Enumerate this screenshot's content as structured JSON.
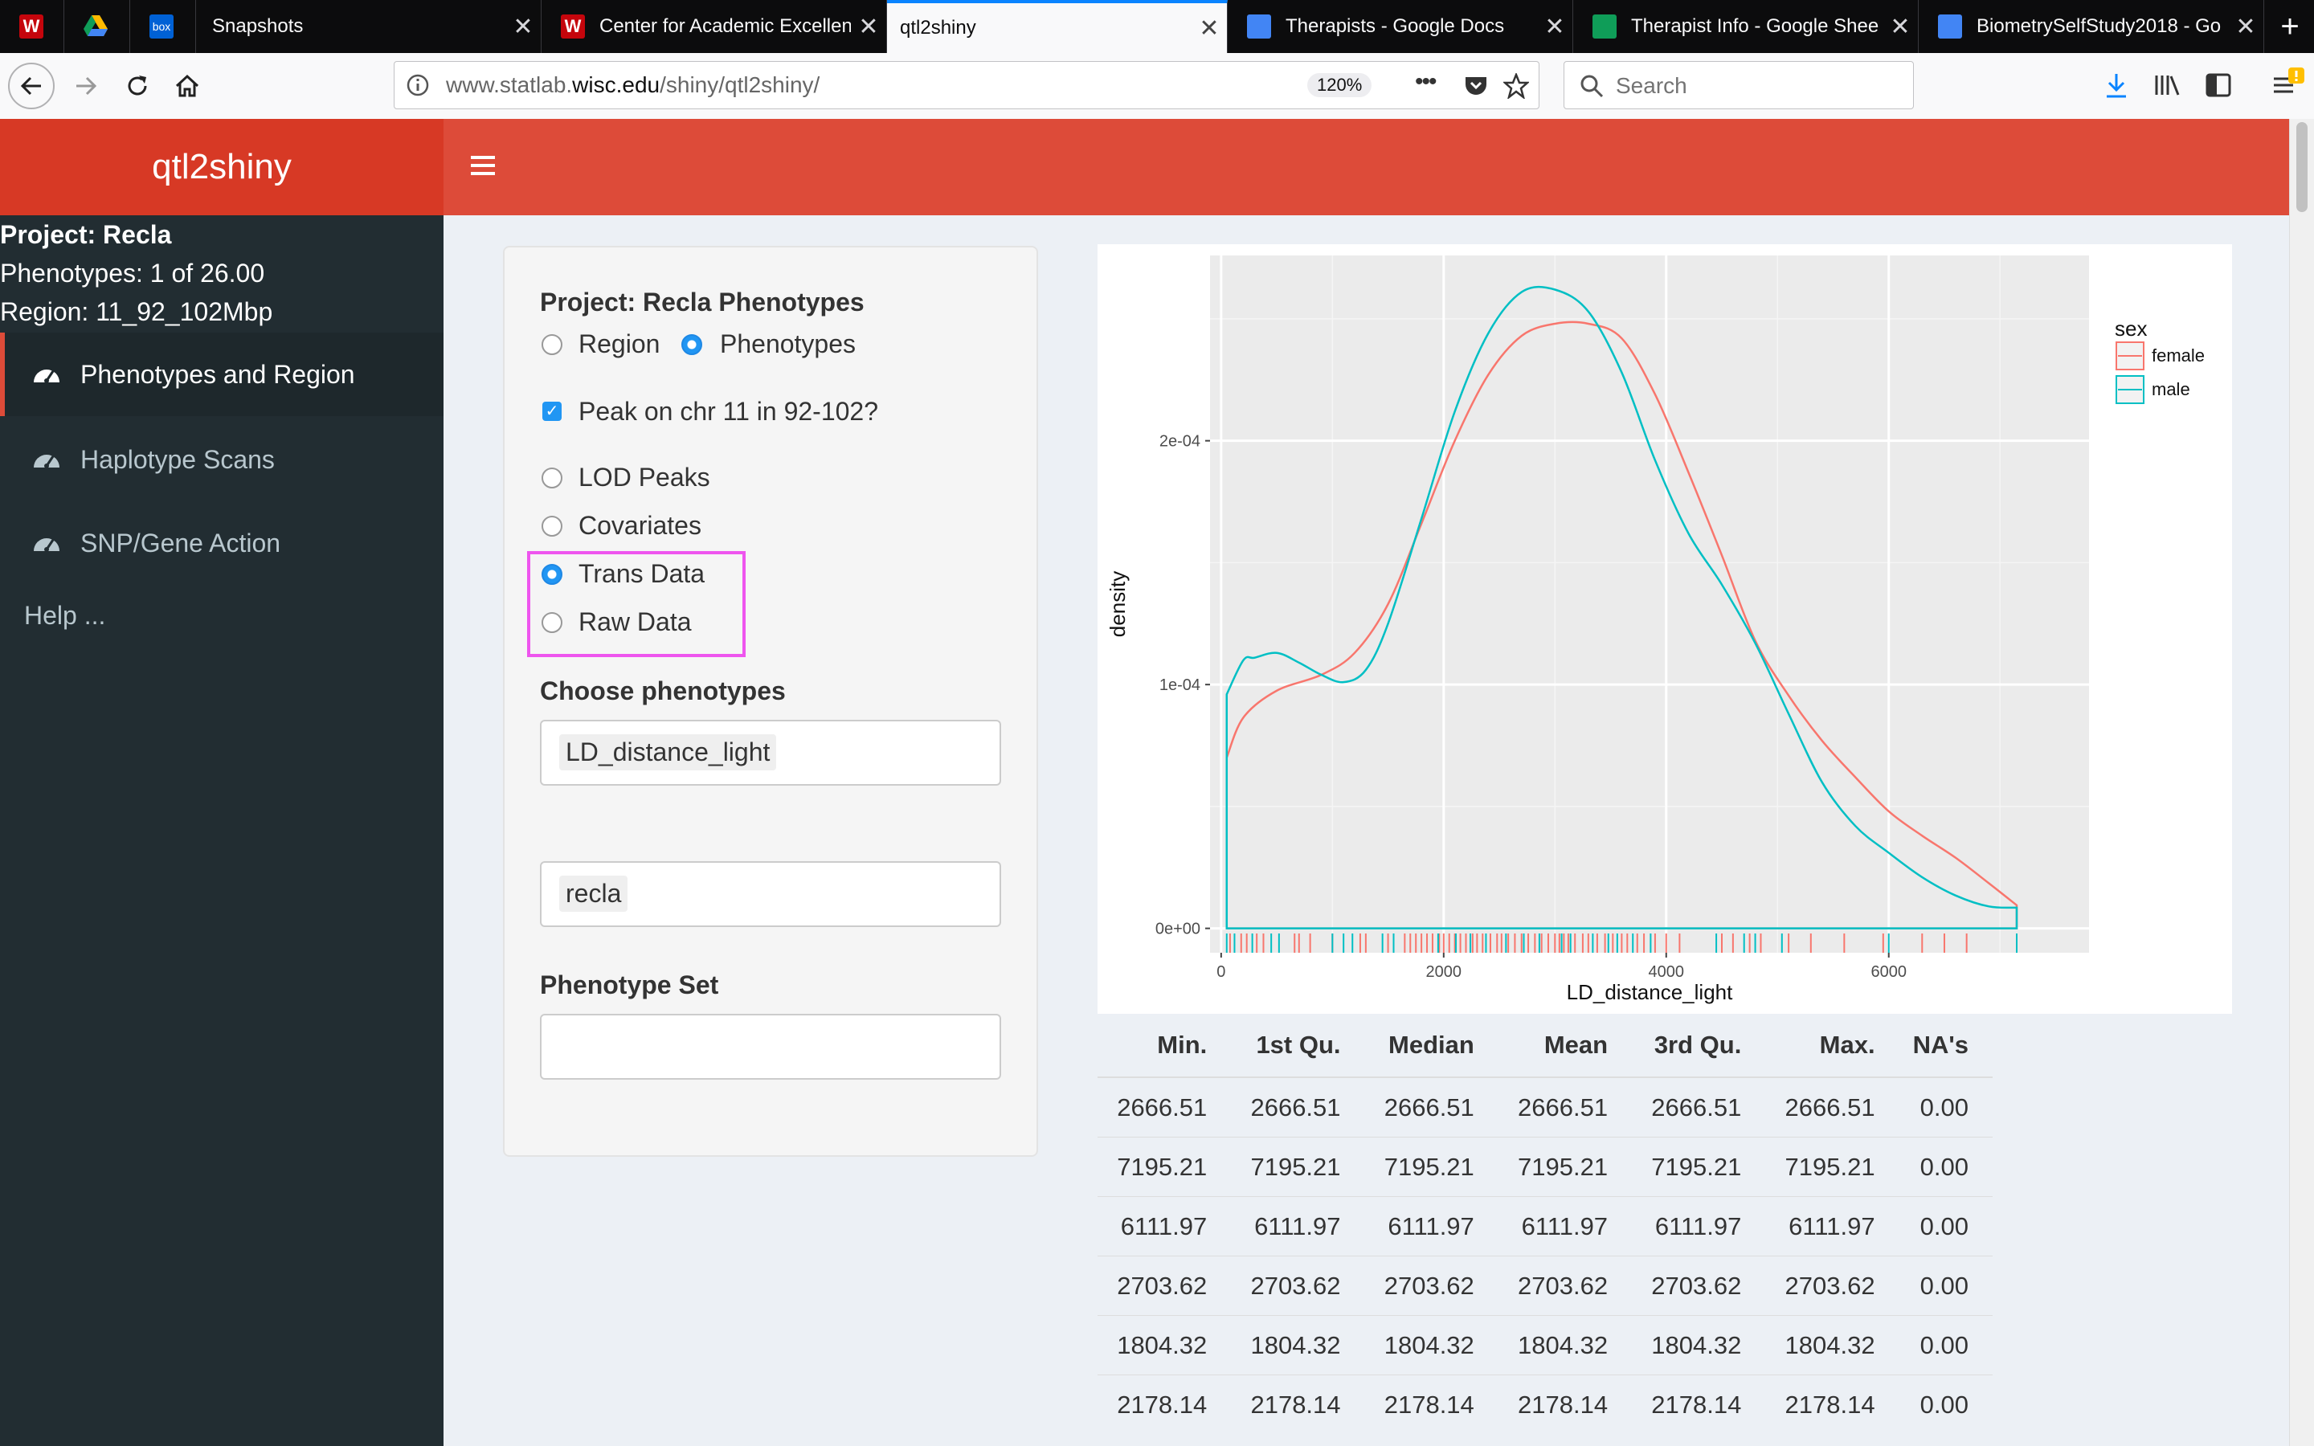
{
  "browser": {
    "tabs": [
      {
        "title": "",
        "icon": "wisc-w-icon"
      },
      {
        "title": "",
        "icon": "google-drive-icon"
      },
      {
        "title": "",
        "icon": "box-icon"
      },
      {
        "title": "Snapshots",
        "icon": "none"
      },
      {
        "title": "Center for Academic Excellen",
        "icon": "wisc-w-icon"
      },
      {
        "title": "qtl2shiny",
        "icon": "none",
        "active": true
      },
      {
        "title": "Therapists - Google Docs",
        "icon": "google-docs-icon"
      },
      {
        "title": "Therapist Info - Google Shee",
        "icon": "google-sheets-icon"
      },
      {
        "title": "BiometrySelfStudy2018 - Go",
        "icon": "google-docs-icon"
      }
    ],
    "box_label": "box",
    "w_label": "W",
    "new_tab": "+",
    "url_prefix": "www.statlab.",
    "url_domain": "wisc.edu",
    "url_path": "/shiny/qtl2shiny/",
    "zoom": "120%",
    "url_more": "•••",
    "search_placeholder": "Search"
  },
  "app": {
    "title": "qtl2shiny",
    "sidebar": {
      "project": "Project: Recla",
      "phenotypes": "Phenotypes: 1 of 26.00",
      "region": "Region: 11_92_102Mbp",
      "items": [
        {
          "label": "Phenotypes and Region",
          "active": true
        },
        {
          "label": "Haplotype Scans"
        },
        {
          "label": "SNP/Gene Action"
        }
      ],
      "help": "Help ..."
    },
    "panel": {
      "heading": "Project: Recla Phenotypes",
      "mode_options": [
        "Region",
        "Phenotypes"
      ],
      "mode_selected": "Phenotypes",
      "peak_checkbox": "Peak on chr 11 in 92-102?",
      "view_options": [
        "LOD Peaks",
        "Covariates",
        "Trans Data",
        "Raw Data"
      ],
      "view_selected": "Trans Data",
      "choose_label": "Choose phenotypes",
      "chosen_phenotype": "LD_distance_light",
      "dataset_value": "recla",
      "phenotype_set_label": "Phenotype Set",
      "phenotype_set_value": ""
    },
    "stats_table": {
      "headers": [
        "Min.",
        "1st Qu.",
        "Median",
        "Mean",
        "3rd Qu.",
        "Max.",
        "NA's"
      ],
      "rows": [
        [
          "2666.51",
          "2666.51",
          "2666.51",
          "2666.51",
          "2666.51",
          "2666.51",
          "0.00"
        ],
        [
          "7195.21",
          "7195.21",
          "7195.21",
          "7195.21",
          "7195.21",
          "7195.21",
          "0.00"
        ],
        [
          "6111.97",
          "6111.97",
          "6111.97",
          "6111.97",
          "6111.97",
          "6111.97",
          "0.00"
        ],
        [
          "2703.62",
          "2703.62",
          "2703.62",
          "2703.62",
          "2703.62",
          "2703.62",
          "0.00"
        ],
        [
          "1804.32",
          "1804.32",
          "1804.32",
          "1804.32",
          "1804.32",
          "1804.32",
          "0.00"
        ],
        [
          "2178.14",
          "2178.14",
          "2178.14",
          "2178.14",
          "2178.14",
          "2178.14",
          "0.00"
        ]
      ]
    }
  },
  "colors": {
    "female": "#f8766d",
    "male": "#00bfc4",
    "header": "#dd4b39",
    "sidebar": "#222d32"
  },
  "chart_data": {
    "type": "area",
    "xlabel": "LD_distance_light",
    "ylabel": "density",
    "xlim": [
      -100,
      7800
    ],
    "ylim": [
      -1e-05,
      0.000276
    ],
    "xticks": [
      0,
      2000,
      4000,
      6000
    ],
    "xtick_labels": [
      "0",
      "2000",
      "4000",
      "6000"
    ],
    "yticks": [
      0,
      0.0001,
      0.0002
    ],
    "ytick_labels": [
      "0e+00",
      "1e-04",
      "2e-04"
    ],
    "legend_title": "sex",
    "legend_position": "right",
    "grid": true,
    "series": [
      {
        "name": "female",
        "x": [
          50,
          200,
          500,
          900,
          1200,
          1500,
          1800,
          2100,
          2400,
          2700,
          3000,
          3300,
          3600,
          3900,
          4200,
          4500,
          4800,
          5100,
          5400,
          5700,
          6000,
          6300,
          6600,
          6900,
          7150
        ],
        "y": [
          7e-05,
          8.65e-05,
          9.75e-05,
          0.000104,
          0.000113,
          0.000133,
          0.000166,
          0.0002,
          0.000227,
          0.000243,
          0.000248,
          0.000248,
          0.000242,
          0.000219,
          0.000187,
          0.000153,
          0.000118,
          9.55e-05,
          7.7e-05,
          6.2e-05,
          4.8e-05,
          3.8e-05,
          2.9e-05,
          1.85e-05,
          9.5e-06
        ]
      },
      {
        "name": "male",
        "x": [
          50,
          200,
          300,
          500,
          700,
          900,
          1100,
          1300,
          1500,
          1800,
          2100,
          2400,
          2700,
          3000,
          3300,
          3600,
          3900,
          4200,
          4500,
          4800,
          5100,
          5400,
          5700,
          6000,
          6300,
          6600,
          6900,
          7150
        ],
        "y": [
          9.6e-05,
          0.00011,
          0.000111,
          0.000113,
          0.000109,
          0.000104,
          0.000101,
          0.000106,
          0.000125,
          0.000168,
          0.000212,
          0.000244,
          0.000261,
          0.000262,
          0.000253,
          0.000228,
          0.000192,
          0.000162,
          0.000141,
          0.000117,
          8.8e-05,
          6e-05,
          4.2e-05,
          3.1e-05,
          2.1e-05,
          1.35e-05,
          9e-06,
          8.5e-06
        ]
      }
    ],
    "rug_female": [
      80,
      180,
      230,
      320,
      380,
      660,
      700,
      800,
      1000,
      1250,
      1300,
      1500,
      1650,
      1700,
      1750,
      1800,
      1850,
      1900,
      1960,
      2000,
      2050,
      2100,
      2150,
      2200,
      2260,
      2300,
      2350,
      2420,
      2480,
      2520,
      2580,
      2640,
      2700,
      2760,
      2820,
      2880,
      2940,
      3000,
      3040,
      3080,
      3120,
      3180,
      3250,
      3300,
      3380,
      3450,
      3520,
      3600,
      3650,
      3740,
      3800,
      3900,
      4000,
      4120,
      4500,
      4600,
      4750,
      4850,
      5100,
      5300,
      5600,
      5950,
      6300,
      6500,
      6700
    ],
    "rug_male": [
      50,
      120,
      280,
      450,
      520,
      1000,
      1100,
      1180,
      1450,
      1550,
      1950,
      2110,
      2240,
      2380,
      2560,
      2720,
      2860,
      3060,
      3140,
      3340,
      3480,
      3560,
      3700,
      3860,
      4450,
      4700,
      4800,
      5040,
      6000,
      7150
    ]
  }
}
